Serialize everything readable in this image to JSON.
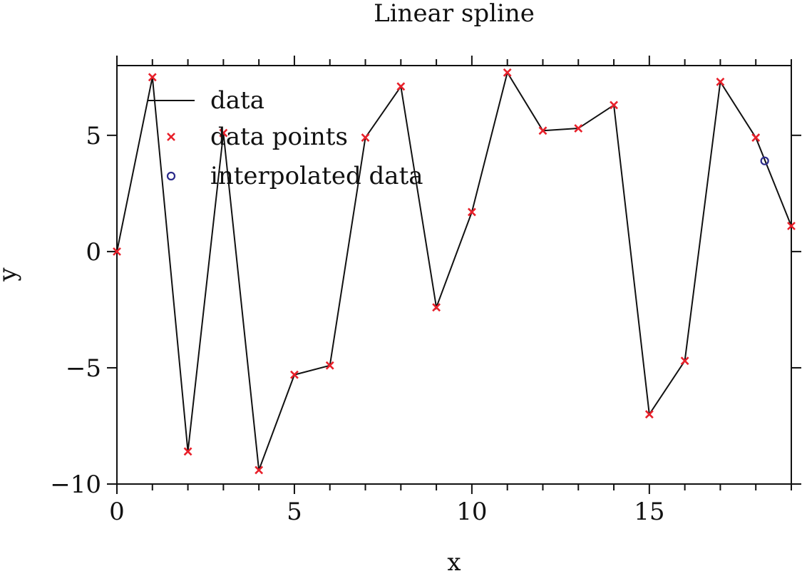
{
  "chart_data": {
    "type": "line",
    "title": "Linear spline",
    "xlabel": "x",
    "ylabel": "y",
    "xlim": [
      0,
      19
    ],
    "ylim": [
      -10,
      8
    ],
    "xticks": [
      0,
      5,
      10,
      15
    ],
    "yticks": [
      -10,
      -5,
      0,
      5
    ],
    "xtick_labels": [
      "0",
      "5",
      "10",
      "15"
    ],
    "ytick_labels": [
      "−10",
      "−5",
      "0",
      "5"
    ],
    "grid": false,
    "legend_position": "top-left",
    "series": [
      {
        "name": "data",
        "kind": "line",
        "color": "#111111",
        "x": [
          0,
          1,
          2,
          3,
          4,
          5,
          6,
          7,
          8,
          9,
          10,
          11,
          12,
          13,
          14,
          15,
          16,
          17,
          18,
          19
        ],
        "y": [
          0.0,
          7.5,
          -8.6,
          5.1,
          -9.4,
          -5.3,
          -4.9,
          4.9,
          7.1,
          -2.4,
          1.7,
          7.7,
          5.2,
          5.3,
          6.3,
          -7.0,
          -4.7,
          7.3,
          4.9,
          1.1
        ]
      },
      {
        "name": "data points",
        "kind": "markers-x",
        "color": "#e8202a",
        "x": [
          0,
          1,
          2,
          3,
          4,
          5,
          6,
          7,
          8,
          9,
          10,
          11,
          12,
          13,
          14,
          15,
          16,
          17,
          18,
          19
        ],
        "y": [
          0.0,
          7.5,
          -8.6,
          5.1,
          -9.4,
          -5.3,
          -4.9,
          4.9,
          7.1,
          -2.4,
          1.7,
          7.7,
          5.2,
          5.3,
          6.3,
          -7.0,
          -4.7,
          7.3,
          4.9,
          1.1
        ]
      },
      {
        "name": "interpolated data",
        "kind": "markers-circle",
        "color": "#2a2a8a",
        "x": [
          18.25
        ],
        "y": [
          3.9
        ]
      }
    ]
  }
}
